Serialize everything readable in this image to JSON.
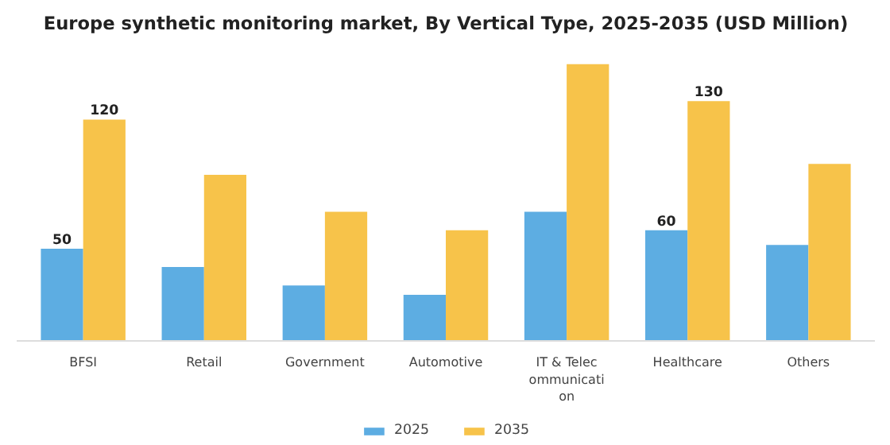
{
  "chart_data": {
    "type": "bar",
    "title": "Europe synthetic monitoring market, By Vertical Type, 2025-2035 (USD Million)",
    "categories": [
      "BFSI",
      "Retail",
      "Government",
      "Automotive",
      "IT & Telecommunication",
      "Healthcare",
      "Others"
    ],
    "series": [
      {
        "name": "2025",
        "color": "#5dade2",
        "values": [
          50,
          40,
          30,
          25,
          70,
          60,
          52
        ],
        "value_labels": [
          "50",
          null,
          null,
          null,
          null,
          "60",
          null
        ]
      },
      {
        "name": "2035",
        "color": "#f7c34a",
        "values": [
          120,
          90,
          70,
          60,
          150,
          130,
          96
        ],
        "value_labels": [
          "120",
          null,
          null,
          null,
          null,
          "130",
          null
        ]
      }
    ],
    "grid": false,
    "legend": "bottom"
  }
}
